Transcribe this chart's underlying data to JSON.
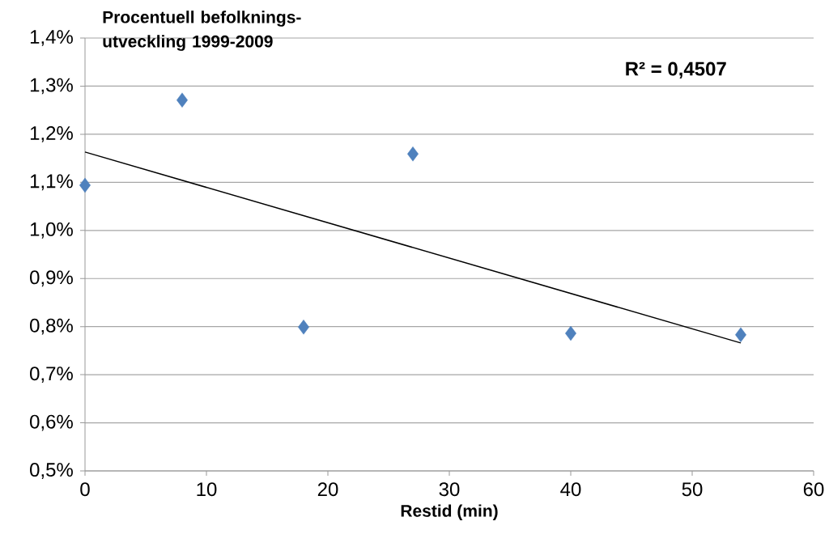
{
  "chart_data": {
    "type": "scatter",
    "ylabel": "Procentuell befolknings-utveckling 1999-2009",
    "xlabel": "Restid (min)",
    "annotations": [
      "R² = 0,4507"
    ],
    "series": [
      {
        "color": "#4f81bd",
        "marker": "diamond",
        "x": [
          0,
          8,
          18,
          27,
          40,
          54
        ],
        "values": [
          1.094,
          1.271,
          0.799,
          1.159,
          0.786,
          0.783
        ]
      },
      {
        "type": "line",
        "color": "#000000",
        "marker": "none",
        "x": [
          0,
          54
        ],
        "values": [
          1.163,
          0.766
        ]
      }
    ],
    "xlim": [
      0,
      60
    ],
    "xticks": [
      0,
      10,
      20,
      30,
      40,
      50,
      60
    ],
    "ylim": [
      0.5,
      1.4
    ],
    "yticks": [
      {
        "value": 0.5,
        "label": "0,5%"
      },
      {
        "value": 0.6,
        "label": "0,6%"
      },
      {
        "value": 0.7,
        "label": "0,7%"
      },
      {
        "value": 0.8,
        "label": "0,8%"
      },
      {
        "value": 0.9,
        "label": "0,9%"
      },
      {
        "value": 1.0,
        "label": "1,0%"
      },
      {
        "value": 1.1,
        "label": "1,1%"
      },
      {
        "value": 1.2,
        "label": "1,2%"
      },
      {
        "value": 1.3,
        "label": "1,3%"
      },
      {
        "value": 1.4,
        "label": "1,4%"
      }
    ],
    "grid": "y"
  }
}
